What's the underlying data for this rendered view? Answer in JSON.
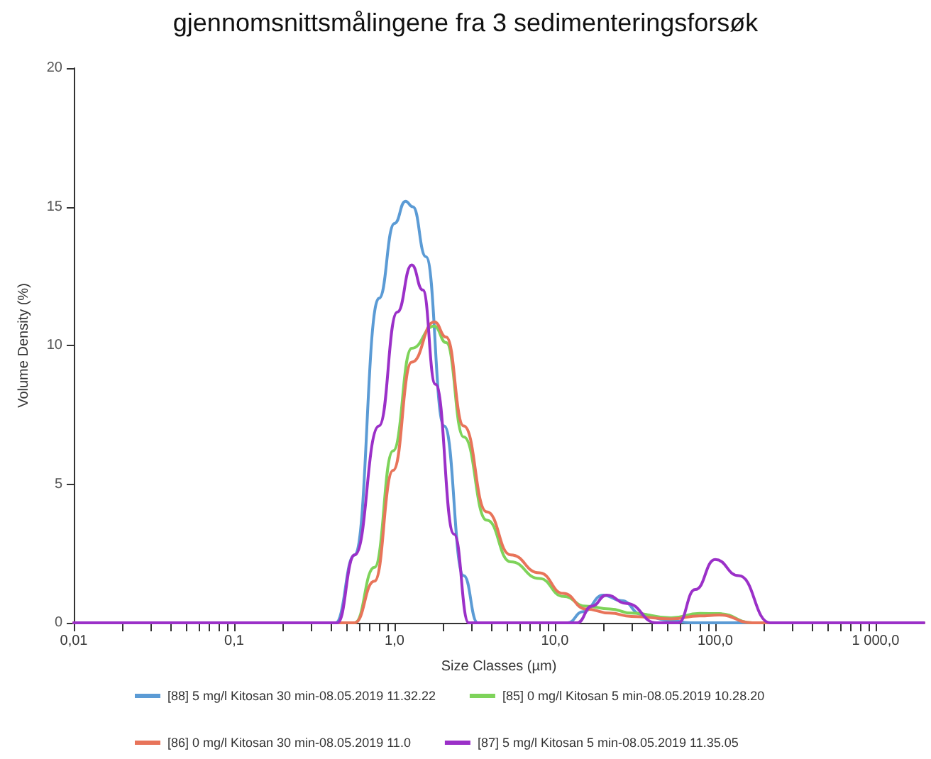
{
  "chart_data": {
    "type": "line",
    "title": "gjennomsnittsmålingene fra 3 sedimenteringsforsøk",
    "xlabel": "Size Classes (µm)",
    "ylabel": "Volume Density (%)",
    "log": "x",
    "xlim": [
      0.01,
      2000
    ],
    "ylim": [
      0,
      20
    ],
    "yticks": [
      0,
      5,
      10,
      15,
      20
    ],
    "xticks": [
      {
        "value": 0.01,
        "label": "0,01"
      },
      {
        "value": 0.02,
        "label": null
      },
      {
        "value": 0.03,
        "label": null
      },
      {
        "value": 0.04,
        "label": null
      },
      {
        "value": 0.05,
        "label": null
      },
      {
        "value": 0.06,
        "label": null
      },
      {
        "value": 0.07,
        "label": null
      },
      {
        "value": 0.08,
        "label": null
      },
      {
        "value": 0.09,
        "label": null
      },
      {
        "value": 0.1,
        "label": "0,1"
      },
      {
        "value": 0.2,
        "label": null
      },
      {
        "value": 0.3,
        "label": null
      },
      {
        "value": 0.4,
        "label": null
      },
      {
        "value": 0.5,
        "label": null
      },
      {
        "value": 0.6,
        "label": null
      },
      {
        "value": 0.7,
        "label": null
      },
      {
        "value": 0.8,
        "label": null
      },
      {
        "value": 0.9,
        "label": null
      },
      {
        "value": 1,
        "label": "1,0"
      },
      {
        "value": 2,
        "label": null
      },
      {
        "value": 3,
        "label": null
      },
      {
        "value": 4,
        "label": null
      },
      {
        "value": 5,
        "label": null
      },
      {
        "value": 6,
        "label": null
      },
      {
        "value": 7,
        "label": null
      },
      {
        "value": 8,
        "label": null
      },
      {
        "value": 9,
        "label": null
      },
      {
        "value": 10,
        "label": "10,0"
      },
      {
        "value": 20,
        "label": null
      },
      {
        "value": 30,
        "label": null
      },
      {
        "value": 40,
        "label": null
      },
      {
        "value": 50,
        "label": null
      },
      {
        "value": 60,
        "label": null
      },
      {
        "value": 70,
        "label": null
      },
      {
        "value": 80,
        "label": null
      },
      {
        "value": 90,
        "label": null
      },
      {
        "value": 100,
        "label": "100,0"
      },
      {
        "value": 200,
        "label": null
      },
      {
        "value": 300,
        "label": null
      },
      {
        "value": 400,
        "label": null
      },
      {
        "value": 500,
        "label": null
      },
      {
        "value": 600,
        "label": null
      },
      {
        "value": 700,
        "label": null
      },
      {
        "value": 800,
        "label": null
      },
      {
        "value": 900,
        "label": null
      },
      {
        "value": 1000,
        "label": "1 000,0"
      }
    ],
    "grid": false,
    "legend": "bottom",
    "marker": "none",
    "line_style": "solid",
    "series": [
      {
        "name": "[88] 5 mg/l Kitosan 30 min-08.05.2019 11.32.22",
        "color": "#5b9bd5",
        "x": [
          0.01,
          0.43,
          0.565,
          0.8,
          1.0,
          1.17,
          1.3,
          1.57,
          2.04,
          2.7,
          3.3,
          12,
          15,
          20,
          26,
          35,
          50,
          70,
          2000
        ],
        "values": [
          0,
          0,
          2.45,
          11.7,
          14.4,
          15.2,
          15.0,
          13.2,
          7.1,
          1.7,
          0,
          0,
          0.4,
          1.0,
          0.8,
          0.3,
          0.1,
          0,
          0
        ]
      },
      {
        "name": "[85] 0 mg/l Kitosan 5 min-08.05.2019 10.28.20",
        "color": "#7ed35a",
        "x": [
          0.01,
          0.565,
          0.75,
          0.98,
          1.28,
          1.77,
          2.1,
          2.7,
          3.76,
          5.3,
          8.0,
          11.3,
          15.6,
          22,
          30,
          53,
          80,
          106,
          170,
          2000
        ],
        "values": [
          0,
          0,
          2.0,
          6.2,
          9.9,
          10.7,
          10.1,
          6.7,
          3.7,
          2.2,
          1.6,
          0.95,
          0.6,
          0.5,
          0.35,
          0.18,
          0.34,
          0.33,
          0,
          0
        ]
      },
      {
        "name": "[86] 0 mg/l Kitosan 30 min-08.05.2019 11.0",
        "color": "#e8745a",
        "x": [
          0.01,
          0.565,
          0.75,
          0.98,
          1.28,
          1.77,
          2.1,
          2.7,
          3.76,
          5.3,
          8.0,
          11.3,
          15.6,
          22,
          30,
          53,
          80,
          106,
          170,
          2000
        ],
        "values": [
          0,
          0,
          1.5,
          5.5,
          9.4,
          10.85,
          10.3,
          7.1,
          4.0,
          2.45,
          1.8,
          1.06,
          0.5,
          0.35,
          0.23,
          0.14,
          0.25,
          0.28,
          0,
          0
        ]
      },
      {
        "name": "[87] 5 mg/l Kitosan 5 min-08.05.2019 11.35.05",
        "color": "#9b30c8",
        "x": [
          0.01,
          0.44,
          0.565,
          0.8,
          1.04,
          1.28,
          1.5,
          1.8,
          2.35,
          2.9,
          13.8,
          17,
          21,
          28,
          43,
          58.7,
          75,
          100,
          140,
          220,
          2000
        ],
        "values": [
          0,
          0,
          2.45,
          7.1,
          11.2,
          12.9,
          12.0,
          8.6,
          3.2,
          0,
          0,
          0.6,
          1.0,
          0.7,
          0,
          0,
          1.2,
          2.28,
          1.7,
          0,
          0
        ]
      }
    ]
  }
}
